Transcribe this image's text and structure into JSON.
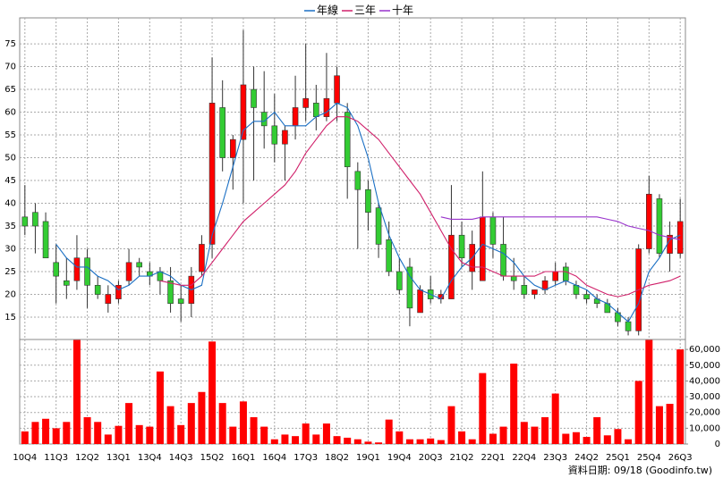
{
  "chart_data": {
    "type": "candlestick",
    "categories": [
      "10Q4",
      null,
      null,
      "11Q3",
      null,
      null,
      "12Q2",
      null,
      null,
      "13Q1",
      null,
      null,
      "13Q4",
      null,
      null,
      "14Q3",
      null,
      null,
      "15Q2",
      null,
      null,
      "16Q1",
      null,
      null,
      "16Q4",
      null,
      null,
      "17Q3",
      null,
      null,
      "18Q2",
      null,
      null,
      "19Q1",
      null,
      null,
      "19Q4",
      null,
      null,
      "20Q3",
      null,
      null,
      "21Q2",
      null,
      null,
      "22Q1",
      null,
      null,
      "22Q4",
      null,
      null,
      "23Q3",
      null,
      null,
      "24Q2",
      null,
      null,
      "25Q1",
      null,
      null,
      "25Q4",
      null,
      null,
      "26Q3"
    ],
    "open": [
      37,
      38,
      36,
      27,
      23,
      23,
      28,
      22,
      18,
      19,
      23,
      27,
      25,
      25,
      23,
      19,
      18,
      25,
      31,
      61,
      50,
      54,
      65,
      60,
      57,
      53,
      57,
      61,
      62,
      59,
      62,
      60,
      47,
      43,
      39,
      32,
      25,
      26,
      16,
      21,
      19,
      19,
      33,
      25,
      23,
      37,
      31,
      24,
      22,
      20,
      21,
      23,
      26,
      22,
      20,
      19,
      18,
      16,
      14,
      12,
      30,
      41,
      29,
      29
    ],
    "high": [
      44,
      40,
      38,
      31,
      28,
      33,
      30,
      24,
      22,
      23,
      30,
      28,
      27,
      26,
      26,
      22,
      26,
      33,
      72,
      67,
      55,
      78,
      70,
      69,
      64,
      57,
      68,
      75,
      66,
      73,
      70,
      62,
      49,
      45,
      40,
      36,
      28,
      28,
      22,
      24,
      21,
      44,
      36,
      34,
      47,
      38,
      37,
      28,
      24,
      21,
      24,
      27,
      27,
      23,
      21,
      20,
      19,
      17,
      15,
      31,
      46,
      42,
      36,
      41
    ],
    "low": [
      33,
      29,
      28,
      18,
      19,
      21,
      17,
      19,
      16,
      18,
      22,
      24,
      22,
      20,
      16,
      14,
      15,
      24,
      28,
      47,
      43,
      40,
      45,
      52,
      49,
      45,
      54,
      58,
      56,
      58,
      58,
      41,
      30,
      34,
      28,
      24,
      20,
      13,
      16,
      18,
      18,
      19,
      26,
      21,
      23,
      28,
      23,
      21,
      19,
      19,
      20,
      22,
      22,
      19,
      18,
      17,
      16,
      13,
      11,
      11,
      29,
      28,
      25,
      28
    ],
    "close": [
      35,
      35,
      28,
      24,
      22,
      28,
      22,
      20,
      20,
      22,
      27,
      26,
      24,
      23,
      18,
      18,
      24,
      31,
      62,
      50,
      54,
      66,
      61,
      57,
      53,
      56,
      61,
      63,
      59,
      63,
      68,
      48,
      43,
      38,
      31,
      25,
      21,
      17,
      21,
      19,
      20,
      33,
      28,
      31,
      37,
      31,
      24,
      23,
      20,
      21,
      23,
      25,
      23,
      20,
      19,
      18,
      16,
      14,
      12,
      30,
      42,
      29,
      33,
      36
    ],
    "volume": [
      8000,
      14000,
      16000,
      10000,
      14000,
      66000,
      17000,
      14000,
      6000,
      11500,
      26000,
      12000,
      11000,
      46000,
      24000,
      12000,
      26000,
      33000,
      65000,
      26000,
      11000,
      27000,
      17000,
      11000,
      3000,
      6000,
      5000,
      13000,
      6000,
      13000,
      5000,
      4000,
      3000,
      1500,
      1000,
      15500,
      8000,
      3000,
      3000,
      3500,
      2500,
      24000,
      8000,
      3000,
      45000,
      6500,
      11000,
      51000,
      14000,
      11000,
      17000,
      32000,
      6500,
      7500,
      4500,
      17000,
      5500,
      9500,
      3000,
      40000,
      66000,
      24000,
      25500,
      60000
    ],
    "up_color": "#ff0000",
    "down_color": "#33cc33",
    "volume_color": "#ff0000",
    "series": [
      {
        "name": "年線",
        "color": "#1a6fc4",
        "values": [
          null,
          null,
          null,
          31,
          28,
          26,
          26,
          24,
          23,
          21,
          22,
          24,
          24,
          25,
          24,
          22,
          21,
          22,
          33,
          40,
          48,
          56,
          58,
          58,
          60,
          57,
          57,
          57,
          59,
          60,
          62,
          61,
          57,
          50,
          40,
          33,
          28,
          24,
          21,
          20,
          19,
          23,
          26,
          28,
          31,
          30,
          29,
          27,
          24,
          22,
          21,
          22,
          23,
          22,
          21,
          19,
          18,
          16,
          14,
          18,
          25,
          28,
          32,
          33
        ]
      },
      {
        "name": "三年",
        "color": "#d0206a",
        "values": [
          null,
          null,
          null,
          null,
          null,
          null,
          null,
          null,
          null,
          null,
          null,
          null,
          null,
          23,
          22.5,
          22,
          22,
          24,
          27,
          30,
          33,
          36,
          38,
          40,
          42,
          44,
          47,
          51,
          54,
          57,
          59,
          59,
          58,
          56,
          54,
          51,
          48,
          45,
          42,
          38,
          34,
          30,
          27,
          26,
          26,
          25,
          24,
          24,
          24,
          24,
          25,
          25,
          25,
          24,
          22,
          21,
          20,
          19.5,
          20,
          21,
          22,
          22.5,
          23,
          24
        ]
      },
      {
        "name": "十年",
        "color": "#9933cc",
        "values": [
          null,
          null,
          null,
          null,
          null,
          null,
          null,
          null,
          null,
          null,
          null,
          null,
          null,
          null,
          null,
          null,
          null,
          null,
          null,
          null,
          null,
          null,
          null,
          null,
          null,
          null,
          null,
          null,
          null,
          null,
          null,
          null,
          null,
          null,
          null,
          null,
          null,
          null,
          null,
          null,
          37,
          36.5,
          36.5,
          36.5,
          37,
          37,
          37,
          37,
          37,
          37,
          37,
          37,
          37,
          37,
          37,
          37,
          36.5,
          36,
          35,
          34.5,
          34,
          33,
          32.5,
          32
        ]
      }
    ],
    "ylim": [
      10.1,
      80.7
    ],
    "yticks": [
      15,
      20,
      25,
      30,
      35,
      40,
      45,
      50,
      55,
      60,
      65,
      70,
      75
    ],
    "volume_lim": [
      0,
      66300
    ],
    "volume_ticks": [
      0,
      {
        "value": 10000,
        "label": "10,000"
      },
      {
        "value": 20000,
        "label": "20,000"
      },
      {
        "value": 30000,
        "label": "30,000"
      },
      {
        "value": 40000,
        "label": "40,000"
      },
      {
        "value": 50000,
        "label": "50,000"
      },
      {
        "value": 60000,
        "label": "60,000"
      }
    ],
    "grid": true,
    "legend_position": "top",
    "footer": "資料日期: 09/18  (Goodinfo.tw)"
  }
}
